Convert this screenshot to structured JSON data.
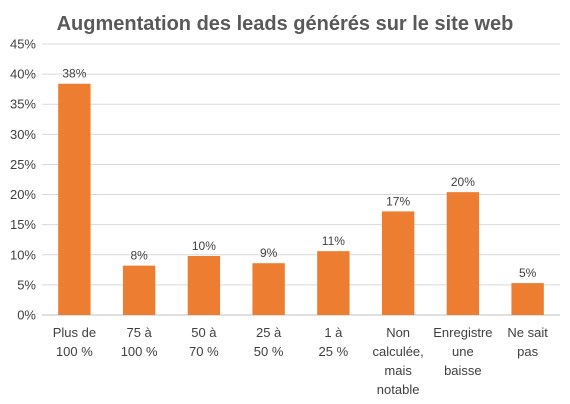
{
  "chart_data": {
    "type": "bar",
    "title": "Augmentation des leads générés sur le site web",
    "xlabel": "",
    "ylabel": "",
    "ylim": [
      0,
      45
    ],
    "y_ticks": [
      "0%",
      "5%",
      "10%",
      "15%",
      "20%",
      "25%",
      "30%",
      "35%",
      "40%",
      "45%"
    ],
    "categories": [
      "Plus de 100 %",
      "75 à 100 %",
      "50 à 70 %",
      "25 à 50 %",
      "1 à 25 %",
      "Non calculée, mais notable",
      "Enregistre une baisse",
      "Ne sait pas"
    ],
    "category_lines": [
      [
        "Plus de",
        "100 %"
      ],
      [
        "75 à",
        "100 %"
      ],
      [
        "50 à",
        "70 %"
      ],
      [
        "25 à",
        "50 %"
      ],
      [
        "1 à",
        "25 %"
      ],
      [
        "Non",
        "calculée,",
        "mais",
        "notable"
      ],
      [
        "Enregistre",
        "une",
        "baisse"
      ],
      [
        "Ne sait",
        "pas"
      ]
    ],
    "values": [
      38.4,
      8.2,
      9.8,
      8.6,
      10.6,
      17.2,
      20.4,
      5.3
    ],
    "data_labels": [
      "38%",
      "8%",
      "10%",
      "9%",
      "11%",
      "17%",
      "20%",
      "5%"
    ],
    "grid": true,
    "bar_color": "#ed7d31",
    "grid_color": "#d9d9d9"
  }
}
